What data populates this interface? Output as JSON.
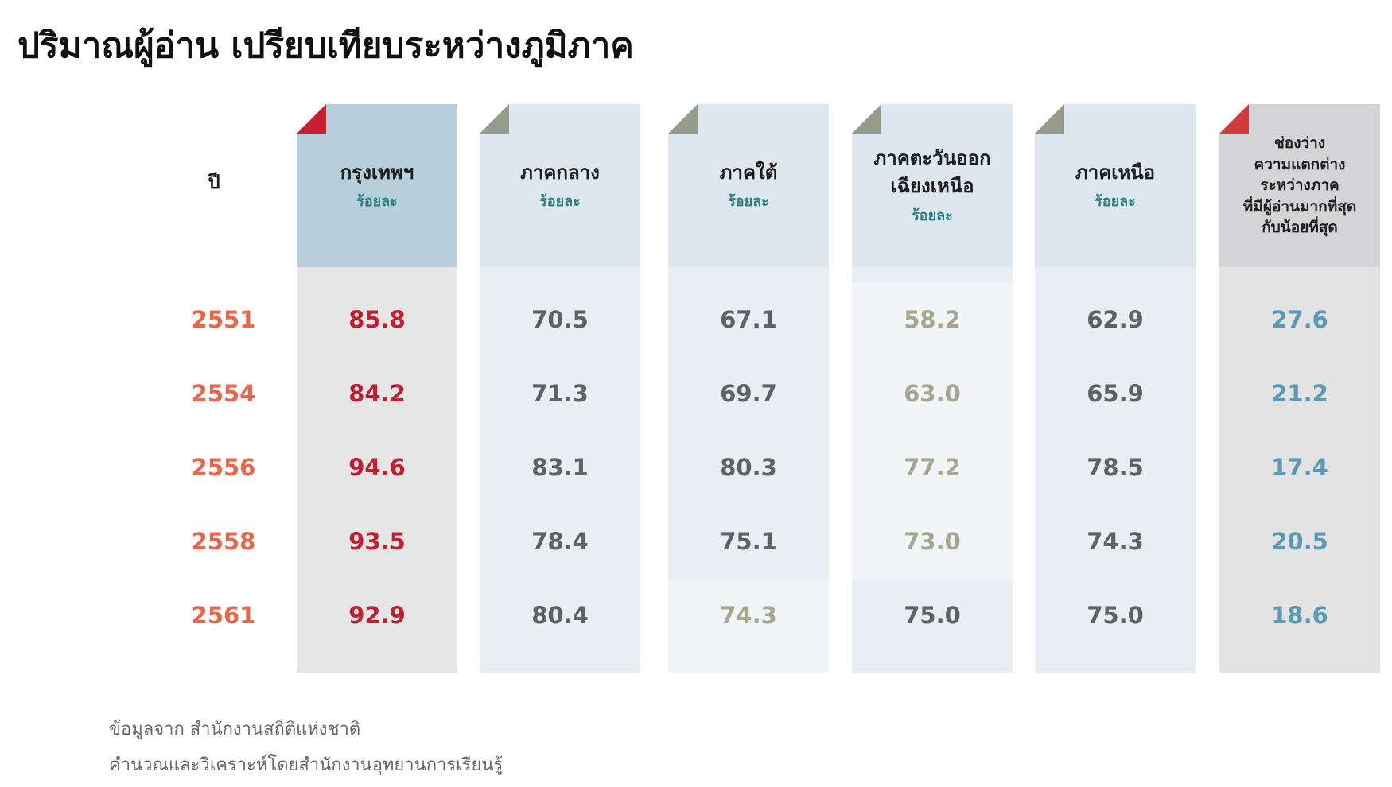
{
  "title": "ปริมาณผู้อ่าน เปรียบเทียบระหว่างภูมิภาค",
  "table": {
    "year_header": "ปี",
    "columns": [
      {
        "label": [
          "กรุงเทพฯ"
        ],
        "unit": "ร้อยละ"
      },
      {
        "label": [
          "ภาคกลาง"
        ],
        "unit": "ร้อยละ"
      },
      {
        "label": [
          "ภาคใต้"
        ],
        "unit": "ร้อยละ"
      },
      {
        "label": [
          "ภาคตะวันออก",
          "เฉียงเหนือ"
        ],
        "unit": "ร้อยละ"
      },
      {
        "label": [
          "ภาคเหนือ"
        ],
        "unit": "ร้อยละ"
      },
      {
        "label": [
          "ช่องว่าง",
          "ความแตกต่าง",
          "ระหว่างภาค",
          "ที่มีผู้อ่านมากที่สุด",
          "กับน้อยที่สุด"
        ]
      }
    ],
    "rows": [
      {
        "year": "2551",
        "values": [
          "85.8",
          "70.5",
          "67.1",
          "58.2",
          "62.9",
          "27.6"
        ]
      },
      {
        "year": "2554",
        "values": [
          "84.2",
          "71.3",
          "69.7",
          "63.0",
          "65.9",
          "21.2"
        ]
      },
      {
        "year": "2556",
        "values": [
          "94.6",
          "83.1",
          "80.3",
          "77.2",
          "78.5",
          "17.4"
        ]
      },
      {
        "year": "2558",
        "values": [
          "93.5",
          "78.4",
          "75.1",
          "73.0",
          "74.3",
          "20.5"
        ]
      },
      {
        "year": "2561",
        "values": [
          "92.9",
          "80.4",
          "74.3",
          "75.0",
          "75.0",
          "18.6"
        ]
      }
    ]
  },
  "footnotes": [
    "ข้อมูลจาก  สำนักงานสถิติแห่งชาติ",
    "คำนวณและวิเคราะห์โดยสำนักงานอุทยานการเรียนรู้"
  ]
}
